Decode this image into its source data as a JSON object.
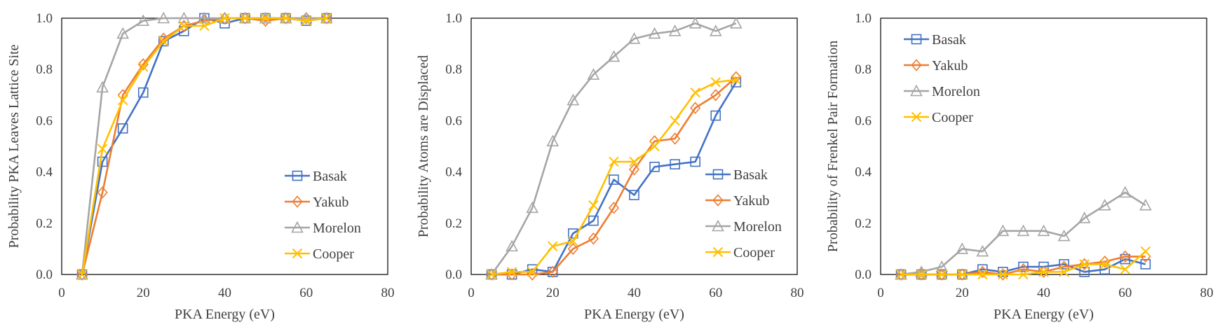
{
  "chart_data": [
    {
      "type": "line",
      "xlabel": "PKA Energy (eV)",
      "ylabel": "Probability PKA Leaves Lattice Site",
      "xlim": [
        0,
        80
      ],
      "ylim": [
        0,
        1
      ],
      "xticks": [
        "0",
        "20",
        "40",
        "60",
        "80"
      ],
      "yticks": [
        "0.0",
        "0.2",
        "0.4",
        "0.6",
        "0.8",
        "1.0"
      ],
      "x": [
        5,
        10,
        15,
        20,
        25,
        30,
        35,
        40,
        45,
        50,
        55,
        60,
        65
      ],
      "legend_position": "bottom-right",
      "series": [
        {
          "name": "Basak",
          "color": "#4472C4",
          "marker": "square",
          "values": [
            0.0,
            0.44,
            0.57,
            0.71,
            0.91,
            0.95,
            1.0,
            0.98,
            1.0,
            1.0,
            1.0,
            0.99,
            1.0
          ]
        },
        {
          "name": "Yakub",
          "color": "#ED7D31",
          "marker": "diamond",
          "values": [
            0.0,
            0.32,
            0.7,
            0.82,
            0.92,
            0.97,
            0.99,
            1.0,
            1.0,
            0.99,
            1.0,
            1.0,
            1.0
          ]
        },
        {
          "name": "Morelon",
          "color": "#A5A5A5",
          "marker": "triangle",
          "values": [
            0.0,
            0.73,
            0.94,
            0.99,
            1.0,
            1.0,
            1.0,
            1.0,
            1.0,
            1.0,
            1.0,
            1.0,
            1.0
          ]
        },
        {
          "name": "Cooper",
          "color": "#FFC000",
          "marker": "x",
          "values": [
            0.0,
            0.49,
            0.68,
            0.81,
            0.91,
            0.97,
            0.97,
            1.0,
            1.0,
            1.0,
            1.0,
            0.99,
            1.0
          ]
        }
      ]
    },
    {
      "type": "line",
      "xlabel": "PKA Energy (eV)",
      "ylabel": "Probability Atoms are Displaced",
      "xlim": [
        0,
        80
      ],
      "ylim": [
        0,
        1
      ],
      "xticks": [
        "0",
        "20",
        "40",
        "60",
        "80"
      ],
      "yticks": [
        "0.0",
        "0.2",
        "0.4",
        "0.6",
        "0.8",
        "1.0"
      ],
      "x": [
        5,
        10,
        15,
        20,
        25,
        30,
        35,
        40,
        45,
        50,
        55,
        60,
        65
      ],
      "legend_position": "bottom-right",
      "series": [
        {
          "name": "Basak",
          "color": "#4472C4",
          "marker": "square",
          "values": [
            0.0,
            0.0,
            0.02,
            0.01,
            0.16,
            0.21,
            0.37,
            0.31,
            0.42,
            0.43,
            0.44,
            0.62,
            0.75
          ]
        },
        {
          "name": "Yakub",
          "color": "#ED7D31",
          "marker": "diamond",
          "values": [
            0.0,
            0.0,
            0.0,
            0.01,
            0.1,
            0.14,
            0.26,
            0.41,
            0.52,
            0.53,
            0.65,
            0.7,
            0.77
          ]
        },
        {
          "name": "Morelon",
          "color": "#A5A5A5",
          "marker": "triangle",
          "values": [
            0.0,
            0.11,
            0.26,
            0.52,
            0.68,
            0.78,
            0.85,
            0.92,
            0.94,
            0.95,
            0.98,
            0.95,
            0.98
          ]
        },
        {
          "name": "Cooper",
          "color": "#FFC000",
          "marker": "x",
          "values": [
            0.0,
            0.01,
            0.01,
            0.11,
            0.13,
            0.27,
            0.44,
            0.44,
            0.5,
            0.6,
            0.71,
            0.75,
            0.76
          ]
        }
      ]
    },
    {
      "type": "line",
      "xlabel": "PKA Energy (eV)",
      "ylabel": "Probability of Frenkel Pair Formation",
      "xlim": [
        0,
        80
      ],
      "ylim": [
        0,
        1
      ],
      "xticks": [
        "0",
        "20",
        "40",
        "60",
        "80"
      ],
      "yticks": [
        "0.0",
        "0.2",
        "0.4",
        "0.6",
        "0.8",
        "1.0"
      ],
      "x": [
        5,
        10,
        15,
        20,
        25,
        30,
        35,
        40,
        45,
        50,
        55,
        60,
        65
      ],
      "legend_position": "top-left",
      "series": [
        {
          "name": "Basak",
          "color": "#4472C4",
          "marker": "square",
          "values": [
            0.0,
            0.0,
            0.0,
            0.0,
            0.02,
            0.01,
            0.03,
            0.03,
            0.04,
            0.01,
            0.02,
            0.06,
            0.04
          ]
        },
        {
          "name": "Yakub",
          "color": "#ED7D31",
          "marker": "diamond",
          "values": [
            0.0,
            0.0,
            0.0,
            0.0,
            0.01,
            0.0,
            0.02,
            0.01,
            0.03,
            0.04,
            0.05,
            0.07,
            0.07
          ]
        },
        {
          "name": "Morelon",
          "color": "#A5A5A5",
          "marker": "triangle",
          "values": [
            0.0,
            0.01,
            0.03,
            0.1,
            0.09,
            0.17,
            0.17,
            0.17,
            0.15,
            0.22,
            0.27,
            0.32,
            0.27
          ]
        },
        {
          "name": "Cooper",
          "color": "#FFC000",
          "marker": "x",
          "values": [
            0.0,
            0.0,
            0.0,
            0.0,
            0.0,
            0.0,
            0.0,
            0.01,
            0.01,
            0.04,
            0.04,
            0.02,
            0.09
          ]
        }
      ]
    }
  ]
}
